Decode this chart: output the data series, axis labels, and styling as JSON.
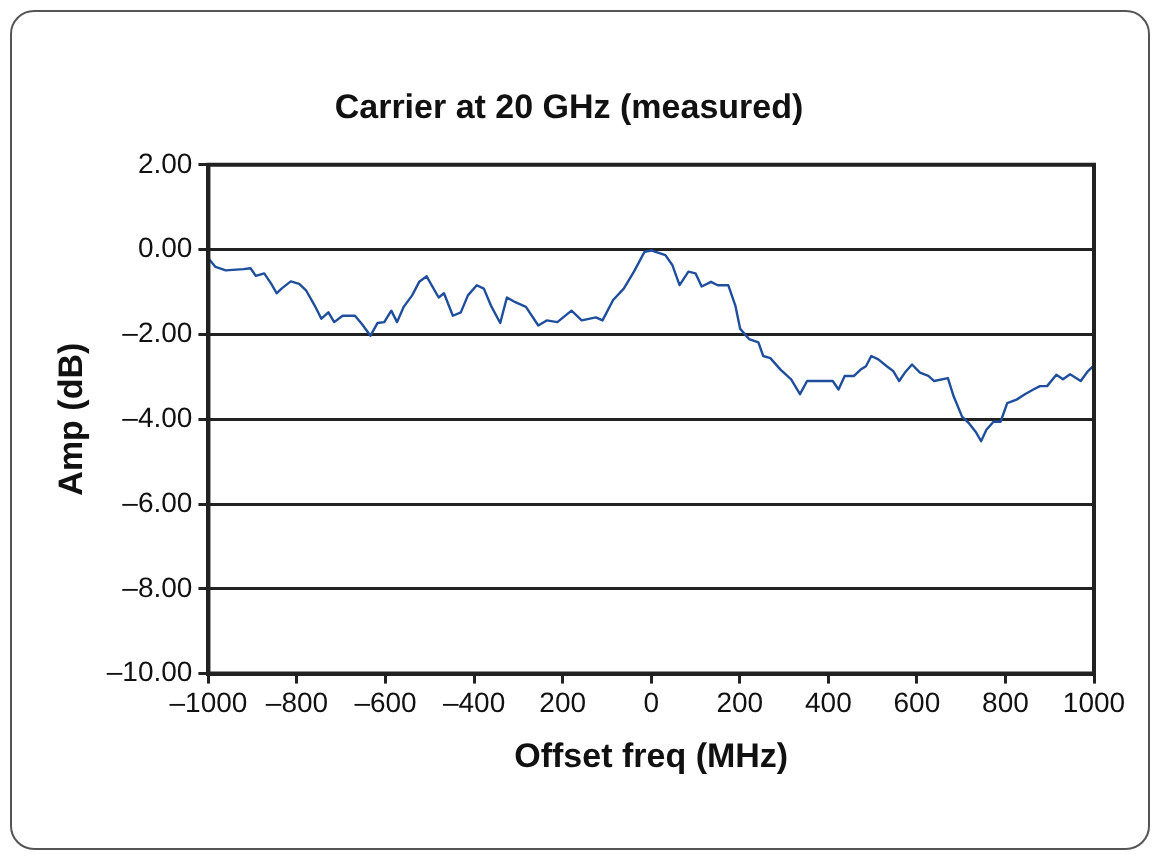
{
  "chart_data": {
    "type": "line",
    "title": "Carrier at 20 GHz (measured)",
    "xlabel": "Offset freq (MHz)",
    "ylabel": "Amp (dB)",
    "xlim": [
      -1000,
      1000
    ],
    "ylim": [
      -10,
      2
    ],
    "xticks": [
      {
        "value": -1000,
        "label": "–1000"
      },
      {
        "value": -800,
        "label": "–800"
      },
      {
        "value": -600,
        "label": "–600"
      },
      {
        "value": -400,
        "label": "–400"
      },
      {
        "value": -200,
        "label": "200"
      },
      0,
      200,
      400,
      600,
      800,
      1000
    ],
    "yticks": [
      {
        "value": -10,
        "label": "–10.00"
      },
      {
        "value": -8,
        "label": "–8.00"
      },
      {
        "value": -6,
        "label": "–6.00"
      },
      {
        "value": -4,
        "label": "–4.00"
      },
      {
        "value": -2,
        "label": "–2.00"
      },
      {
        "value": 0,
        "label": "0.00"
      },
      {
        "value": 2,
        "label": "2.00"
      }
    ],
    "grid": "y",
    "legend": false,
    "marker": "none",
    "line_style": "solid",
    "series": [
      {
        "color": "#1f4e9c",
        "x": [
          -1000,
          -984,
          -961,
          -921,
          -905,
          -893,
          -874,
          -858,
          -846,
          -835,
          -814,
          -795,
          -779,
          -760,
          -745,
          -729,
          -716,
          -697,
          -669,
          -653,
          -634,
          -618,
          -603,
          -587,
          -574,
          -559,
          -540,
          -524,
          -507,
          -496,
          -480,
          -468,
          -448,
          -430,
          -414,
          -394,
          -378,
          -362,
          -341,
          -326,
          -307,
          -283,
          -255,
          -236,
          -212,
          -180,
          -157,
          -125,
          -110,
          -86,
          -62,
          -39,
          -15,
          0,
          32,
          48,
          64,
          84,
          100,
          114,
          135,
          150,
          174,
          190,
          201,
          221,
          242,
          253,
          269,
          292,
          316,
          336,
          352,
          387,
          410,
          423,
          437,
          458,
          473,
          485,
          497,
          513,
          532,
          547,
          560,
          573,
          589,
          607,
          626,
          639,
          670,
          683,
          702,
          718,
          733,
          745,
          757,
          773,
          789,
          804,
          825,
          844,
          863,
          878,
          894,
          915,
          930,
          946,
          970,
          986,
          998
        ],
        "values": [
          -0.21,
          -0.41,
          -0.49,
          -0.46,
          -0.44,
          -0.62,
          -0.56,
          -0.81,
          -1.03,
          -0.92,
          -0.75,
          -0.81,
          -0.97,
          -1.32,
          -1.63,
          -1.48,
          -1.71,
          -1.56,
          -1.56,
          -1.76,
          -2.03,
          -1.73,
          -1.71,
          -1.44,
          -1.71,
          -1.35,
          -1.08,
          -0.76,
          -0.63,
          -0.84,
          -1.13,
          -1.03,
          -1.56,
          -1.48,
          -1.08,
          -0.84,
          -0.92,
          -1.32,
          -1.73,
          -1.13,
          -1.24,
          -1.35,
          -1.79,
          -1.67,
          -1.71,
          -1.44,
          -1.67,
          -1.6,
          -1.67,
          -1.19,
          -0.92,
          -0.52,
          -0.05,
          -0.02,
          -0.13,
          -0.37,
          -0.84,
          -0.52,
          -0.56,
          -0.87,
          -0.76,
          -0.84,
          -0.84,
          -1.32,
          -1.87,
          -2.11,
          -2.19,
          -2.51,
          -2.56,
          -2.83,
          -3.06,
          -3.41,
          -3.1,
          -3.1,
          -3.1,
          -3.3,
          -2.98,
          -2.98,
          -2.83,
          -2.75,
          -2.51,
          -2.59,
          -2.75,
          -2.87,
          -3.1,
          -2.9,
          -2.71,
          -2.9,
          -2.98,
          -3.1,
          -3.03,
          -3.46,
          -3.94,
          -4.1,
          -4.3,
          -4.52,
          -4.25,
          -4.06,
          -4.06,
          -3.62,
          -3.54,
          -3.41,
          -3.3,
          -3.22,
          -3.22,
          -2.95,
          -3.06,
          -2.94,
          -3.1,
          -2.87,
          -2.75
        ]
      }
    ]
  }
}
